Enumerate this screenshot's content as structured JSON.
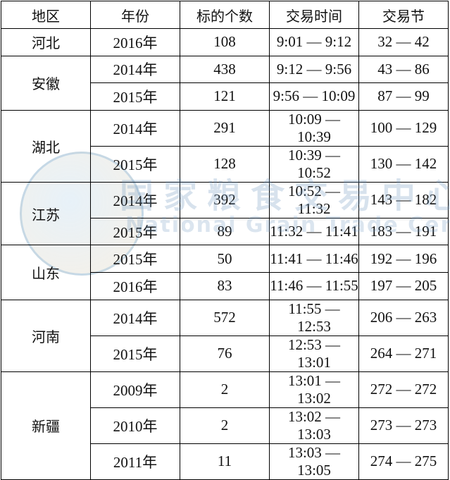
{
  "headers": [
    "地区",
    "年份",
    "标的个数",
    "交易时间",
    "交易节"
  ],
  "groups": [
    {
      "region": "河北",
      "rows": [
        {
          "year": "2016年",
          "count": "108",
          "time": "9:01 — 9:12",
          "session": "32 — 42"
        }
      ]
    },
    {
      "region": "安徽",
      "rows": [
        {
          "year": "2014年",
          "count": "438",
          "time": "9:12 — 9:56",
          "session": "43 — 86"
        },
        {
          "year": "2015年",
          "count": "121",
          "time": "9:56 — 10:09",
          "session": "87 — 99"
        }
      ]
    },
    {
      "region": "湖北",
      "rows": [
        {
          "year": "2014年",
          "count": "291",
          "time": "10:09 — 10:39",
          "session": "100 — 129"
        },
        {
          "year": "2015年",
          "count": "128",
          "time": "10:39 — 10:52",
          "session": "130 — 142"
        }
      ]
    },
    {
      "region": "江苏",
      "rows": [
        {
          "year": "2014年",
          "count": "392",
          "time": "10:52 — 11:32",
          "session": "143 — 182"
        },
        {
          "year": "2015年",
          "count": "89",
          "time": "11:32 — 11:41",
          "session": "183 — 191"
        }
      ]
    },
    {
      "region": "山东",
      "rows": [
        {
          "year": "2015年",
          "count": "50",
          "time": "11:41 — 11:46",
          "session": "192 — 196"
        },
        {
          "year": "2016年",
          "count": "83",
          "time": "11:46 — 11:55",
          "session": "197 — 205"
        }
      ]
    },
    {
      "region": "河南",
      "rows": [
        {
          "year": "2014年",
          "count": "572",
          "time": "11:55 — 12:53",
          "session": "206 — 263"
        },
        {
          "year": "2015年",
          "count": "76",
          "time": "12:53 — 13:01",
          "session": "264 — 271"
        }
      ]
    },
    {
      "region": "新疆",
      "rows": [
        {
          "year": "2009年",
          "count": "2",
          "time": "13:01 — 13:02",
          "session": "272 — 272"
        },
        {
          "year": "2010年",
          "count": "2",
          "time": "13:02 — 13:03",
          "session": "273 — 273"
        },
        {
          "year": "2011年",
          "count": "11",
          "time": "13:03 — 13:05",
          "session": "274 — 275"
        }
      ]
    }
  ],
  "watermark": {
    "cn": "国家粮食交易中心",
    "en": "National Grain Trade Center"
  }
}
